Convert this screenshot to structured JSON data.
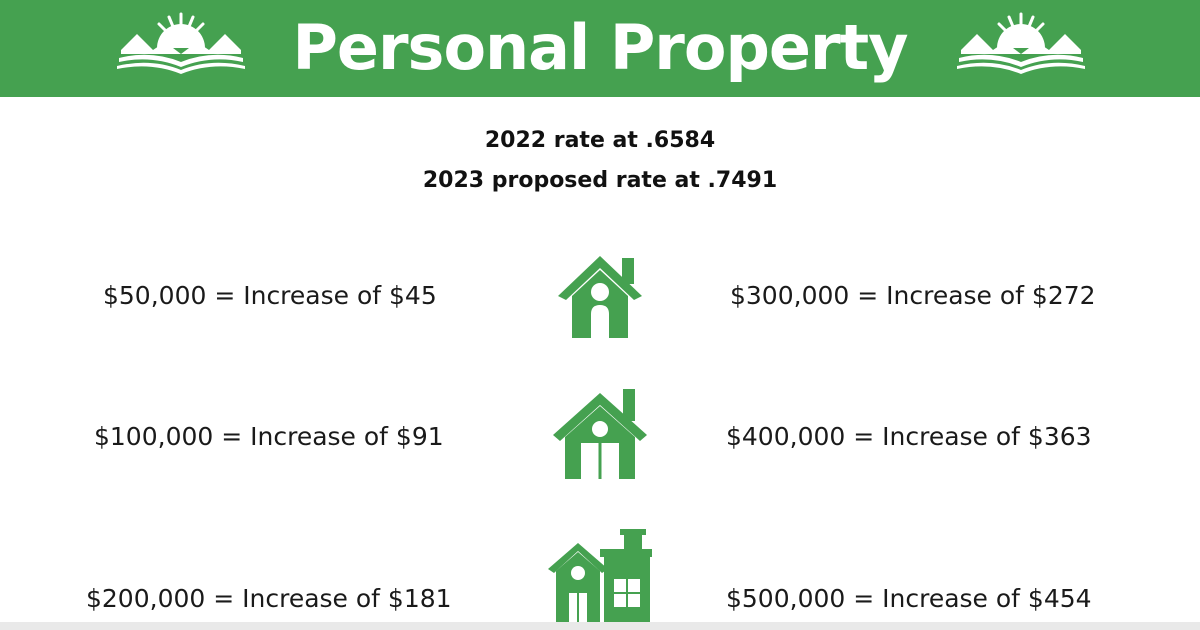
{
  "header": {
    "title": "Personal Property"
  },
  "rates": {
    "line_2022": "2022 rate at .6584",
    "line_2023": "2023 proposed rate at .7491"
  },
  "rows": [
    {
      "left": "$50,000 = Increase of $45",
      "right": "$300,000 = Increase of $272",
      "icon": "house-icon"
    },
    {
      "left": "$100,000 = Increase of $91",
      "right": "$400,000 = Increase of $363",
      "icon": "house-icon"
    },
    {
      "left": "$200,000 = Increase of $181",
      "right": "$500,000 = Increase of $454",
      "icon": "two-story-house-icon"
    }
  ],
  "colors": {
    "brand_green": "#45a150",
    "text": "#111111",
    "background": "#ffffff"
  }
}
